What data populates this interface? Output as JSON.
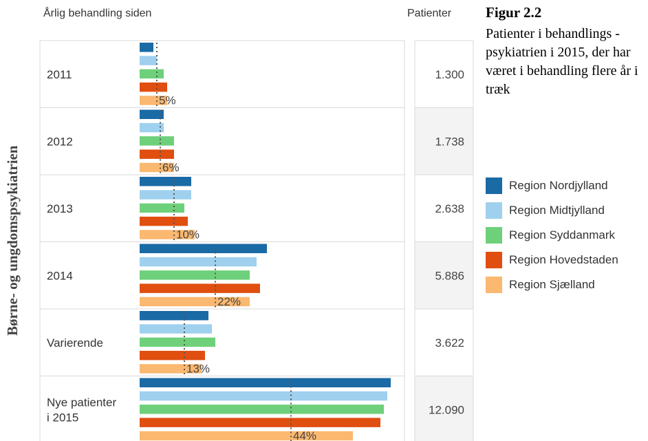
{
  "header": {
    "left_label": "Årlig behandling siden",
    "right_label": "Patienter"
  },
  "side_label": "Børne- og ungdomspsykiatrien",
  "figure": {
    "title": "Figur 2.2",
    "subtitle": "Patienter i behandlings - psykiatrien i 2015, der har været i behandling flere år i træk"
  },
  "colors": {
    "Region Nordjylland": "#1a6aa6",
    "Region Midtjylland": "#9fd0ee",
    "Region Syddanmark": "#6ed07a",
    "Region Hovedstaden": "#e04e10",
    "Region Sjælland": "#fbb870"
  },
  "chart_data": {
    "type": "bar",
    "orientation": "horizontal",
    "categories": [
      "2011",
      "2012",
      "2013",
      "2014",
      "Varierende",
      "Nye patienter i 2015"
    ],
    "category_lines": [
      [
        "2011"
      ],
      [
        "2012"
      ],
      [
        "2013"
      ],
      [
        "2014"
      ],
      [
        "Varierende"
      ],
      [
        "Nye patienter",
        "i 2015"
      ]
    ],
    "series": [
      {
        "name": "Region Nordjylland",
        "values": [
          4,
          7,
          15,
          37,
          20,
          73
        ]
      },
      {
        "name": "Region Midtjylland",
        "values": [
          5,
          7,
          15,
          34,
          21,
          72
        ]
      },
      {
        "name": "Region Syddanmark",
        "values": [
          7,
          10,
          13,
          32,
          22,
          71
        ]
      },
      {
        "name": "Region Hovedstaden",
        "values": [
          8,
          10,
          14,
          35,
          19,
          70
        ]
      },
      {
        "name": "Region Sjælland",
        "values": [
          8,
          10,
          16,
          32,
          18,
          62
        ]
      }
    ],
    "average_percent": [
      5,
      6,
      10,
      22,
      13,
      44
    ],
    "average_labels": [
      "5%",
      "6%",
      "10%",
      "22%",
      "13%",
      "44%"
    ],
    "patients": [
      "1.300",
      "1.738",
      "2.638",
      "5.886",
      "3.622",
      "12.090"
    ],
    "legend_position": "right",
    "grid": false
  }
}
